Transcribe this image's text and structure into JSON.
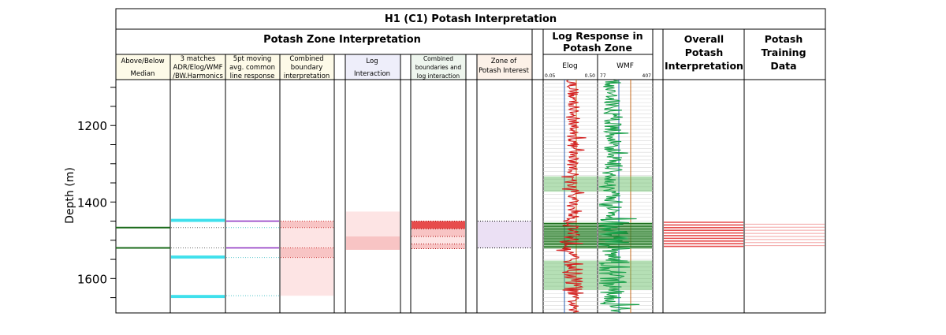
{
  "title": "H1 (C1) Potash Interpretation",
  "colors": {
    "green": "#1b6b1b",
    "cyan": "#3fe0ec",
    "purple": "#8a2ec0",
    "red": "#e74c4c",
    "pink": "#f8c4c4",
    "lightpink": "#fde4e4",
    "elog": "#d42020",
    "wmf": "#1aa04a",
    "zone_green": "#5cb85c",
    "zone_lavender": "#ebe0f4"
  },
  "chart_data": {
    "type": "well-log-correlation",
    "ylabel": "Depth (m)",
    "ylim": [
      1690,
      1080
    ],
    "yticks": [
      1200,
      1400,
      1600
    ],
    "groups": [
      {
        "label": "Potash Zone Interpretation"
      },
      {
        "label": "Log Response in Potash Zone"
      },
      {
        "label": "Overall Potash Interpretation"
      },
      {
        "label": "Potash Training Data"
      }
    ],
    "tracks": [
      {
        "label": "Above/Below Median",
        "background": "#fdfae8"
      },
      {
        "label": "3 matches ADR/Elog/WMF /BW.Harmonics",
        "background": "#fdfae8"
      },
      {
        "label": "5pt moving avg. common line response",
        "background": "#fdfae8"
      },
      {
        "label": "Combined boundary interpretation",
        "background": "#fdfae8"
      },
      {
        "label": "Log Interaction",
        "background": "#eeeefa"
      },
      {
        "label": "Combined boundaries and log interaction",
        "background": "#eef6ee"
      },
      {
        "label": "Zone of Potash Interest",
        "background": "#fcf1e8"
      }
    ],
    "log_tracks": [
      {
        "label": "Elog",
        "min": "0.05",
        "max": "0.50",
        "cutoff_a": 0.16,
        "cutoff_b": 0.24
      },
      {
        "label": "WMF",
        "min": "77",
        "max": "407",
        "cutoff_a": 128,
        "cutoff_b": 200
      }
    ],
    "above_below_median_lines": [
      1467,
      1520
    ],
    "three_match_bands": [
      [
        1444,
        1452
      ],
      [
        1540,
        1548
      ],
      [
        1643,
        1651
      ]
    ],
    "three_match_dotted": [
      1467,
      1520
    ],
    "moving_avg_lines": [
      1450,
      1520
    ],
    "moving_avg_dotted": [
      1467,
      1545,
      1645
    ],
    "combined_boundary_zones": [
      {
        "top": 1450,
        "bottom": 1467,
        "shade": "pink"
      },
      {
        "top": 1467,
        "bottom": 1520,
        "shade": "lightpink"
      },
      {
        "top": 1520,
        "bottom": 1545,
        "shade": "pink"
      },
      {
        "top": 1545,
        "bottom": 1645,
        "shade": "lightpink"
      }
    ],
    "log_interaction_zones": [
      {
        "top": 1425,
        "bottom": 1490,
        "shade": "lightpink"
      },
      {
        "top": 1490,
        "bottom": 1525,
        "shade": "pink"
      }
    ],
    "combined_log_zones": [
      {
        "top": 1450,
        "bottom": 1470,
        "shade": "red"
      },
      {
        "top": 1470,
        "bottom": 1490,
        "shade": "pink"
      },
      {
        "top": 1490,
        "bottom": 1510,
        "shade": "lightpink"
      },
      {
        "top": 1510,
        "bottom": 1522,
        "shade": "pink"
      }
    ],
    "zone_of_interest": {
      "top": 1450,
      "bottom": 1520
    },
    "green_zones": [
      [
        1333,
        1373
      ],
      [
        1453,
        1522
      ],
      [
        1553,
        1630
      ]
    ],
    "overall_lines": [
      1453,
      1460,
      1467,
      1474,
      1481,
      1488,
      1495,
      1502,
      1509,
      1516
    ],
    "training_lines": [
      1458,
      1466,
      1474,
      1482,
      1490,
      1498,
      1506,
      1514
    ]
  }
}
